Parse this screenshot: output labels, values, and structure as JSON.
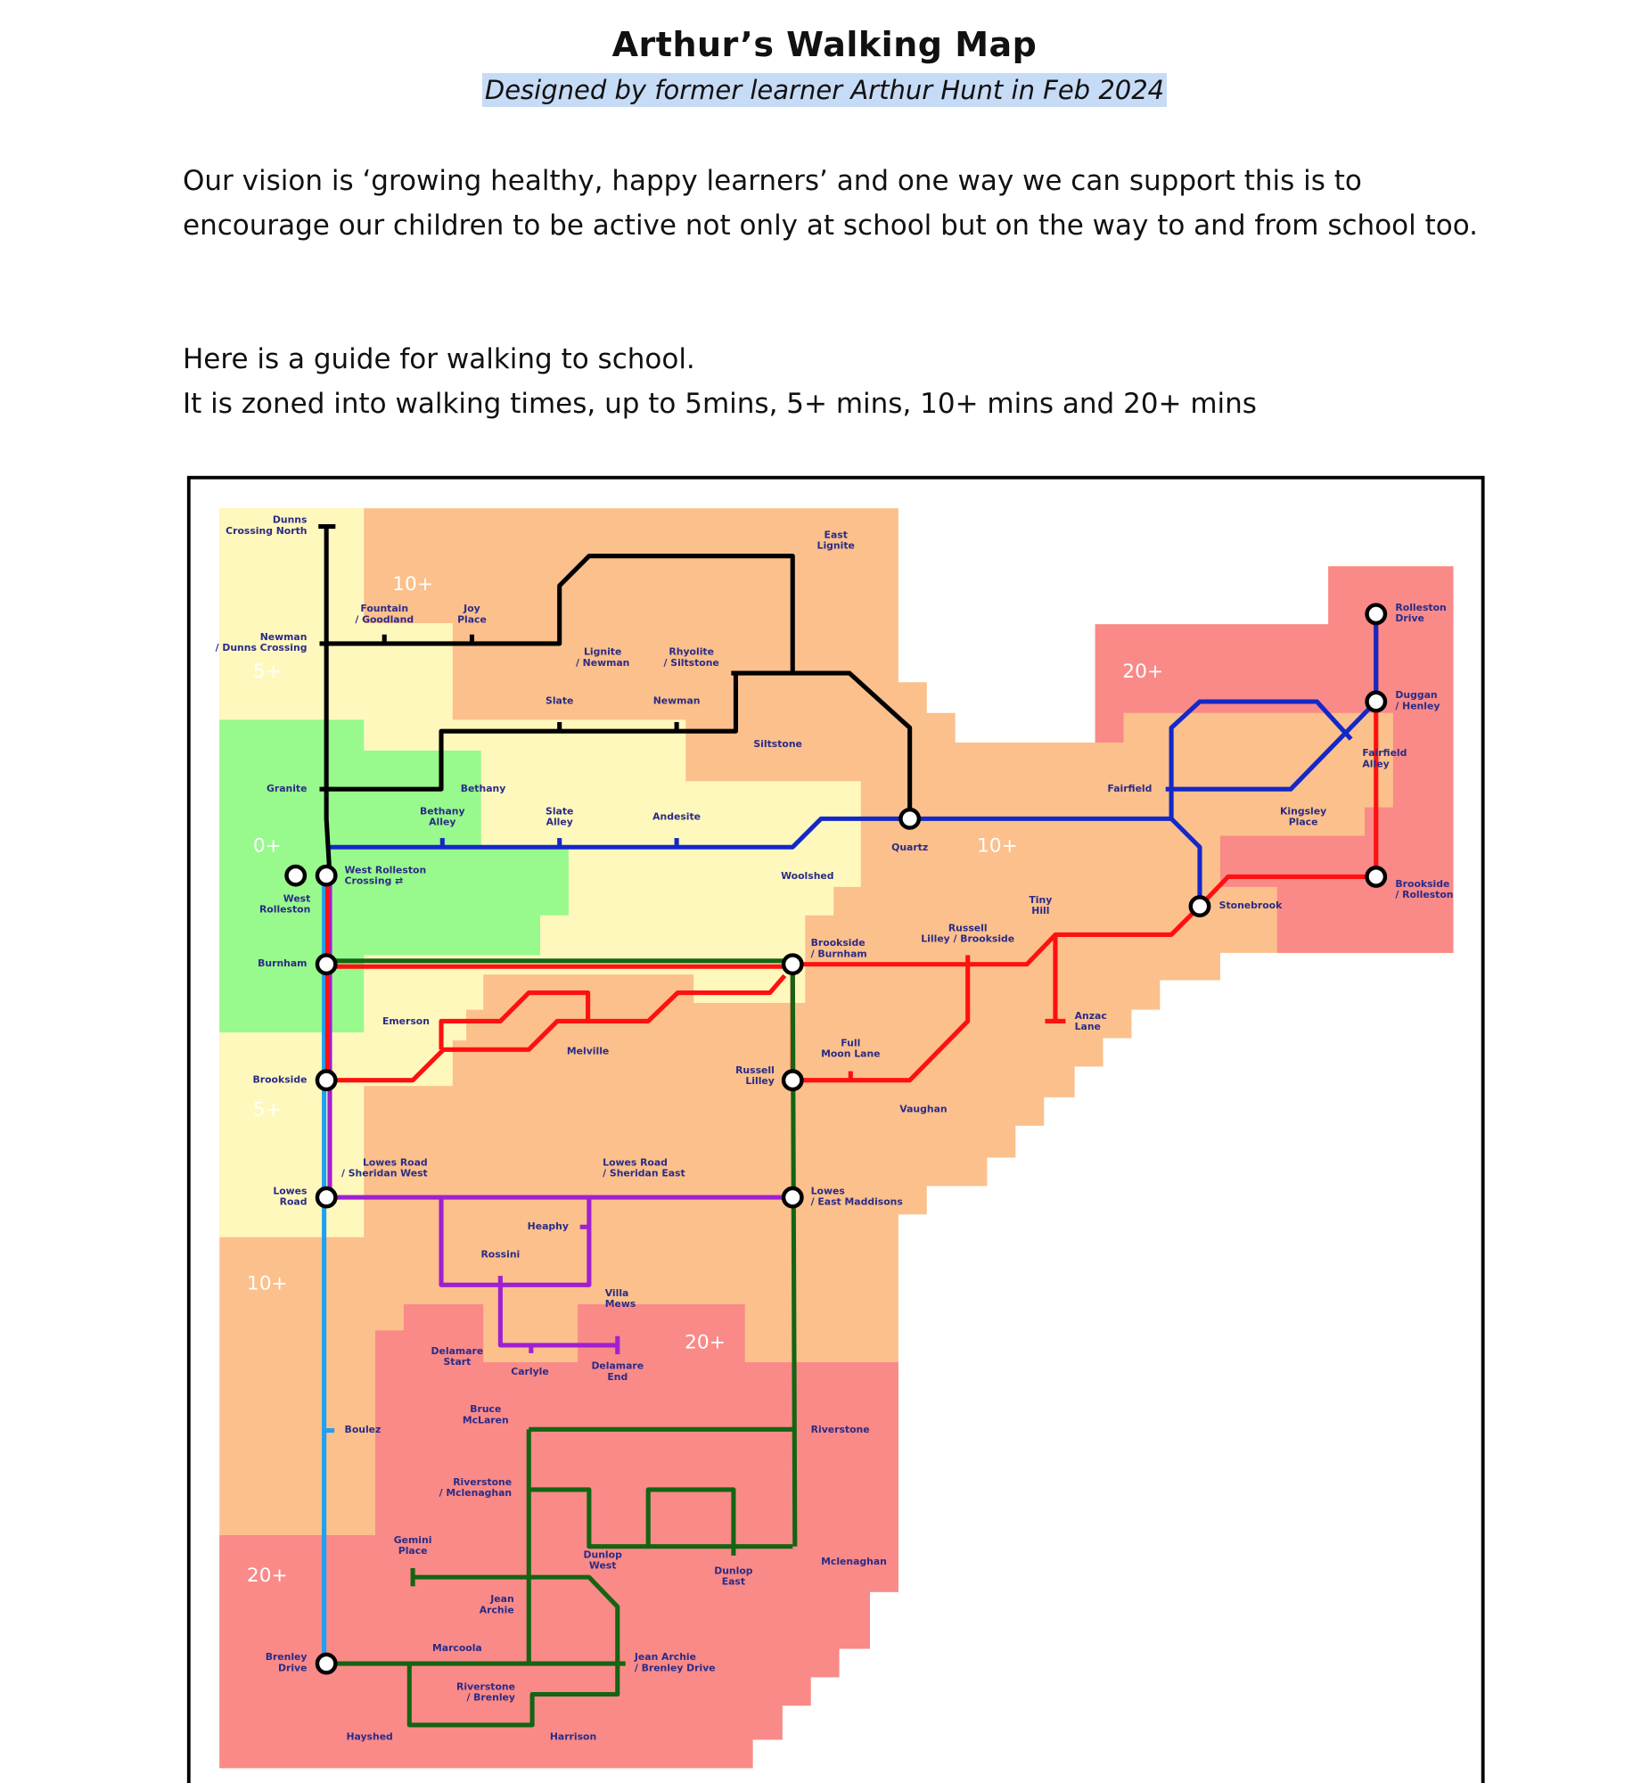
{
  "header": {
    "title": "Arthur’s Walking Map",
    "subtitle": "Designed by former learner Arthur Hunt in Feb 2024"
  },
  "body": {
    "vision": "Our vision is ‘growing healthy, happy learners’ and one way we can support this is to encourage our children to be active not only at school but on the way to and from school too.",
    "guide_line1": "Here is a guide for walking to school.",
    "guide_line2": "It is zoned into walking times, up to 5mins, 5+ mins, 10+ mins and 20+ mins"
  },
  "map": {
    "colors": {
      "zone_0": "#98f98c",
      "zone_5": "#fff8bd",
      "zone_10": "#fbc08c",
      "zone_20": "#f98a88",
      "black_line": "#000000",
      "blue_line": "#1428c8",
      "red_line": "#ff1010",
      "green_line": "#146414",
      "purple_line": "#a020d0",
      "light_blue_line": "#20a0f0",
      "label": "#2b2b86"
    },
    "zone_labels": [
      "10+",
      "5+",
      "0+",
      "20+",
      "10+",
      "5+",
      "10+",
      "20+",
      "20+"
    ],
    "stations": [
      [
        "Dunns",
        "Crossing North"
      ],
      [
        "Fountain",
        "/ Goodland"
      ],
      [
        "Joy",
        "Place"
      ],
      [
        "Newman",
        "/ Dunns Crossing"
      ],
      [
        "Lignite",
        "/ Newman"
      ],
      [
        "Rhyolite",
        "/ Siltstone"
      ],
      [
        "East",
        "Lignite"
      ],
      [
        "Slate"
      ],
      [
        "Newman"
      ],
      [
        "Siltstone"
      ],
      [
        "Granite"
      ],
      [
        "Bethany"
      ],
      [
        "Bethany",
        "Alley"
      ],
      [
        "Slate",
        "Alley"
      ],
      [
        "Andesite"
      ],
      [
        "Woolshed"
      ],
      [
        "Quartz"
      ],
      [
        "West Rolleston",
        "Crossing ⇄"
      ],
      [
        "West",
        "Rolleston"
      ],
      [
        "Burnham"
      ],
      [
        "Brookside",
        "/ Burnham"
      ],
      [
        "Russell",
        "Lilley / Brookside"
      ],
      [
        "Tiny",
        "Hill"
      ],
      [
        "Anzac",
        "Lane"
      ],
      [
        "Emerson"
      ],
      [
        "Melville"
      ],
      [
        "Full",
        "Moon Lane"
      ],
      [
        "Brookside"
      ],
      [
        "Russell",
        "Lilley"
      ],
      [
        "Vaughan"
      ],
      [
        "Lowes Road",
        "/ Sheridan West"
      ],
      [
        "Lowes Road",
        "/ Sheridan East"
      ],
      [
        "Lowes",
        "Road"
      ],
      [
        "Lowes",
        "/ East Maddisons"
      ],
      [
        "Heaphy"
      ],
      [
        "Rossini"
      ],
      [
        "Villa",
        "Mews"
      ],
      [
        "Delamare",
        "Start"
      ],
      [
        "Carlyle"
      ],
      [
        "Delamare",
        "End"
      ],
      [
        "Bruce",
        "McLaren"
      ],
      [
        "Riverstone"
      ],
      [
        "Boulez"
      ],
      [
        "Riverstone",
        "/ Mclenaghan"
      ],
      [
        "Gemini",
        "Place"
      ],
      [
        "Dunlop",
        "West"
      ],
      [
        "Dunlop",
        "East"
      ],
      [
        "Mclenaghan"
      ],
      [
        "Jean",
        "Archie"
      ],
      [
        "Marcoola"
      ],
      [
        "Brenley",
        "Drive"
      ],
      [
        "Jean Archie",
        "/ Brenley Drive"
      ],
      [
        "Riverstone",
        "/ Brenley"
      ],
      [
        "Hayshed"
      ],
      [
        "Harrison"
      ],
      [
        "Rolleston",
        "Drive"
      ],
      [
        "Duggan",
        "/ Henley"
      ],
      [
        "Fairfield",
        "Alley"
      ],
      [
        "Fairfield"
      ],
      [
        "Kingsley",
        "Place"
      ],
      [
        "Stonebrook"
      ],
      [
        "Brookside",
        "/ Rolleston"
      ]
    ]
  }
}
